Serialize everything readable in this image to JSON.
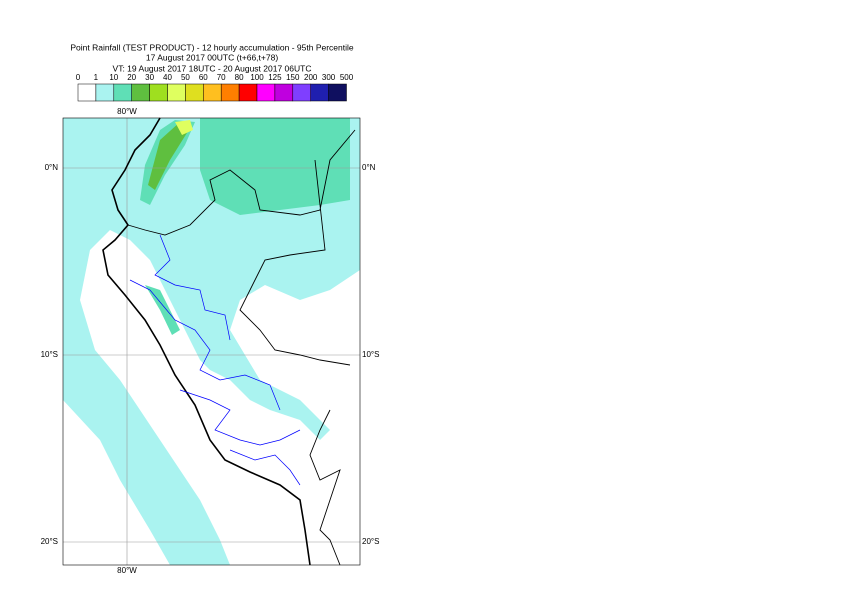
{
  "header": {
    "title": [
      "Point Rainfall (TEST PRODUCT) - 12 hourly accumulation - 95th Percentile",
      "17 August 2017 00UTC (t+66,t+78)",
      "VT: 19 August 2017 18UTC - 20 August 2017 06UTC"
    ]
  },
  "colorbar": {
    "labels": [
      0,
      1,
      10,
      20,
      30,
      40,
      50,
      60,
      70,
      80,
      100,
      125,
      150,
      200,
      300,
      500
    ],
    "colors": [
      "#ffffff",
      "#aaf3f0",
      "#5fdfb6",
      "#5fbf3f",
      "#9fdf1f",
      "#dfff5f",
      "#dfdf1f",
      "#ffbf1f",
      "#ff7f00",
      "#ff0000",
      "#ff00ff",
      "#bf00df",
      "#7f3fff",
      "#1f1faf",
      "#0f0f5f"
    ]
  },
  "map": {
    "lon_labels": [
      "80°W"
    ],
    "lat_labels": [
      "0°N",
      "10°S",
      "20°S"
    ]
  }
}
